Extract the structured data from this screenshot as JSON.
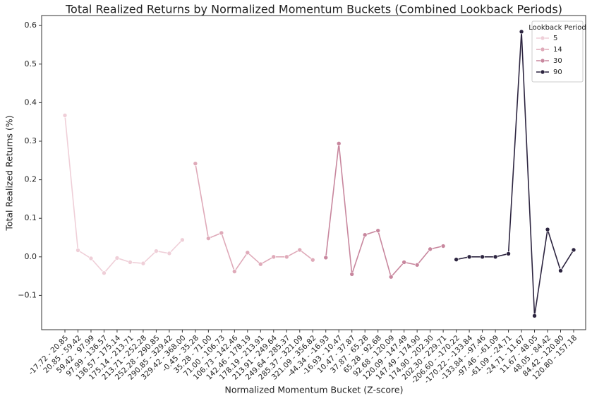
{
  "chart_data": {
    "type": "line",
    "title": "Total Realized Returns by Normalized Momentum Buckets (Combined Lookback Periods)",
    "x_label": "Normalized Momentum Bucket (Z-score)",
    "y_label": "Total Realized Returns (%)",
    "legend_title": "Lookback Period",
    "legend_position": "upper right",
    "grid": false,
    "markers": true,
    "categories": [
      "-17.72 - 20.85",
      "20.85 - 59.42",
      "59.42 - 97.99",
      "97.99 - 136.57",
      "136.57 - 175.14",
      "175.14 - 213.71",
      "213.71 - 252.28",
      "252.28 - 290.85",
      "290.85 - 329.42",
      "329.42 - 368.00",
      "-0.45 - 35.28",
      "35.28 - 71.00",
      "71.00 - 106.73",
      "106.73 - 142.46",
      "142.46 - 178.19",
      "178.19 - 213.91",
      "213.91 - 249.64",
      "249.64 - 285.37",
      "285.37 - 321.09",
      "321.09 - 356.82",
      "-44.34 - -16.93",
      "-16.93 - 10.47",
      "10.47 - 37.87",
      "37.87 - 65.28",
      "65.28 - 92.68",
      "92.68 - 120.09",
      "120.09 - 147.49",
      "147.49 - 174.90",
      "174.90 - 202.30",
      "202.30 - 229.71",
      "-206.60 - -170.22",
      "-170.22 - -133.84",
      "-133.84 - -97.46",
      "-97.46 - -61.09",
      "-61.09 - -24.71",
      "-24.71 - 11.67",
      "11.67 - 48.05",
      "48.05 - 84.42",
      "84.42 - 120.80",
      "120.80 - 157.18"
    ],
    "series": [
      {
        "name": "5",
        "color": "#efcfd8",
        "values": [
          0.367,
          0.017,
          -0.004,
          -0.042,
          -0.003,
          -0.014,
          -0.017,
          0.015,
          0.009,
          0.044,
          null,
          null,
          null,
          null,
          null,
          null,
          null,
          null,
          null,
          null,
          null,
          null,
          null,
          null,
          null,
          null,
          null,
          null,
          null,
          null,
          null,
          null,
          null,
          null,
          null,
          null,
          null,
          null,
          null,
          null
        ]
      },
      {
        "name": "14",
        "color": "#dfaab9",
        "values": [
          null,
          null,
          null,
          null,
          null,
          null,
          null,
          null,
          null,
          null,
          0.242,
          0.048,
          0.062,
          -0.038,
          0.011,
          -0.019,
          0.0,
          0.0,
          0.018,
          -0.008,
          null,
          null,
          null,
          null,
          null,
          null,
          null,
          null,
          null,
          null,
          null,
          null,
          null,
          null,
          null,
          null,
          null,
          null,
          null,
          null
        ]
      },
      {
        "name": "30",
        "color": "#c8879e",
        "values": [
          null,
          null,
          null,
          null,
          null,
          null,
          null,
          null,
          null,
          null,
          null,
          null,
          null,
          null,
          null,
          null,
          null,
          null,
          null,
          null,
          -0.002,
          0.294,
          -0.045,
          0.057,
          0.068,
          -0.052,
          -0.014,
          -0.021,
          0.02,
          0.028,
          null,
          null,
          null,
          null,
          null,
          null,
          null,
          null,
          null,
          null
        ]
      },
      {
        "name": "90",
        "color": "#2d2540",
        "values": [
          null,
          null,
          null,
          null,
          null,
          null,
          null,
          null,
          null,
          null,
          null,
          null,
          null,
          null,
          null,
          null,
          null,
          null,
          null,
          null,
          null,
          null,
          null,
          null,
          null,
          null,
          null,
          null,
          null,
          null,
          -0.007,
          0.0,
          0.0,
          0.0,
          0.008,
          0.584,
          -0.153,
          0.071,
          -0.036,
          0.018
        ]
      }
    ],
    "ylim": [
      -0.189,
      0.626
    ],
    "yticks": [
      {
        "value": -0.1,
        "label": "−0.1"
      },
      {
        "value": 0,
        "label": "0.0"
      },
      0.1,
      0.2,
      0.3,
      0.4,
      0.5,
      0.6
    ]
  }
}
